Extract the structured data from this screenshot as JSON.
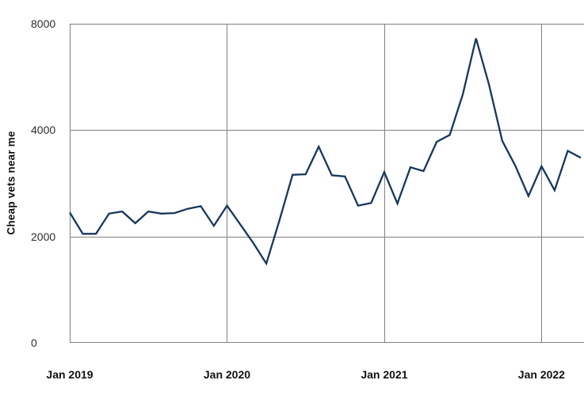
{
  "chart_data": {
    "type": "line",
    "title": "",
    "xlabel": "",
    "ylabel": "Cheap vets near me",
    "x_tick_labels": [
      "Jan 2019",
      "Jan 2020",
      "Jan 2021",
      "Jan 2022"
    ],
    "y_tick_labels": [
      "0",
      "2000",
      "4000",
      "8000"
    ],
    "y_ticks": [
      0,
      2000,
      4000,
      8000
    ],
    "layout": {
      "grid": true,
      "legend": "none",
      "y_ticks_equally_spaced": true,
      "right_edge_cut_off": true
    },
    "series": [
      {
        "name": "Cheap vets near me",
        "x": [
          "Jan 2019",
          "Feb 2019",
          "Mar 2019",
          "Apr 2019",
          "May 2019",
          "Jun 2019",
          "Jul 2019",
          "Aug 2019",
          "Sep 2019",
          "Oct 2019",
          "Nov 2019",
          "Dec 2019",
          "Jan 2020",
          "Feb 2020",
          "Mar 2020",
          "Apr 2020",
          "May 2020",
          "Jun 2020",
          "Jul 2020",
          "Aug 2020",
          "Sep 2020",
          "Oct 2020",
          "Nov 2020",
          "Dec 2020",
          "Jan 2021",
          "Feb 2021",
          "Mar 2021",
          "Apr 2021",
          "May 2021",
          "Jun 2021",
          "Jul 2021",
          "Aug 2021",
          "Sep 2021",
          "Oct 2021",
          "Nov 2021",
          "Dec 2021",
          "Jan 2022",
          "Feb 2022",
          "Mar 2022",
          "Apr 2022"
        ],
        "values": [
          2450,
          2050,
          2050,
          2430,
          2470,
          2250,
          2470,
          2430,
          2440,
          2520,
          2570,
          2200,
          2580,
          2230,
          1880,
          1490,
          2300,
          3160,
          3170,
          3690,
          3150,
          3130,
          2580,
          2630,
          3210,
          2620,
          3300,
          3230,
          3780,
          3910,
          5360,
          7450,
          5700,
          3800,
          3330,
          2760,
          3320,
          2870,
          3610,
          3480
        ]
      }
    ],
    "colors": {
      "line": "#17375d",
      "grid": "#808080",
      "y_tick_text": "#2e2e2e",
      "label_text": "#111111",
      "background": "#ffffff"
    }
  }
}
